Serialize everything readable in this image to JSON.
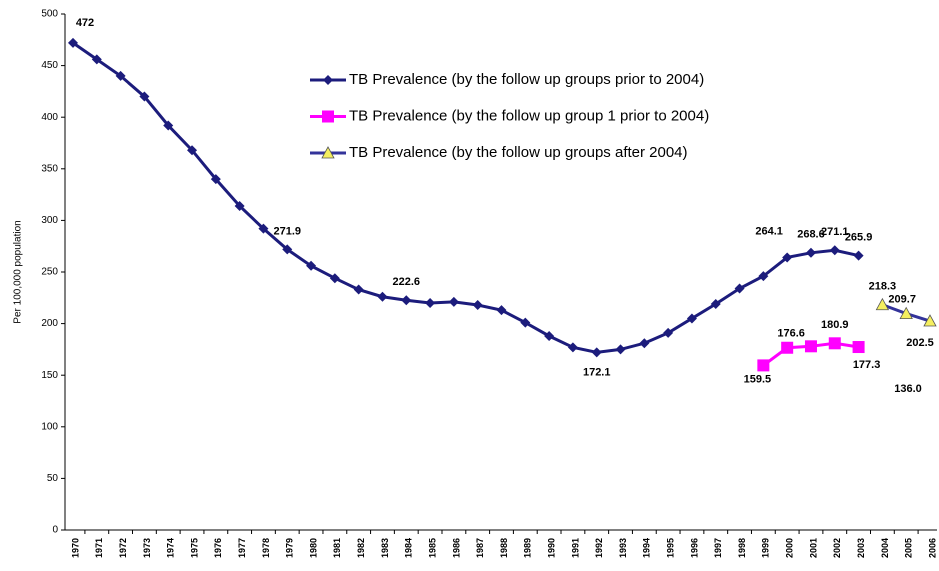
{
  "chart_data": {
    "type": "line",
    "y_label": "Per 100,000 population",
    "categories": [
      "1970",
      "1971",
      "1972",
      "1973",
      "1974",
      "1975",
      "1976",
      "1977",
      "1978",
      "1979",
      "1980",
      "1981",
      "1982",
      "1983",
      "1984",
      "1985",
      "1986",
      "1987",
      "1988",
      "1989",
      "1990",
      "1991",
      "1992",
      "1993",
      "1994",
      "1995",
      "1996",
      "1997",
      "1998",
      "1999",
      "2000",
      "2001",
      "2002",
      "2003",
      "2004",
      "2005",
      "2006"
    ],
    "series": [
      {
        "name": "TB Prevalence (by the follow up groups prior to 2004)",
        "color": "#1c1c7c",
        "marker": "diamond",
        "values": [
          472,
          456,
          440,
          420,
          392,
          368,
          340,
          314,
          292,
          271.9,
          256,
          244,
          233,
          226,
          222.6,
          220,
          221,
          218,
          213,
          201,
          188,
          177,
          172.1,
          175,
          181,
          191,
          205,
          219,
          234,
          246,
          264.1,
          268.6,
          271.1,
          265.9,
          null,
          null,
          null
        ],
        "value_labels": [
          "472",
          null,
          null,
          null,
          null,
          null,
          null,
          null,
          null,
          "271.9",
          null,
          null,
          null,
          null,
          "222.6",
          null,
          null,
          null,
          null,
          null,
          null,
          null,
          "172.1",
          null,
          null,
          null,
          null,
          null,
          null,
          null,
          "264.1",
          "268.6",
          "271.1",
          "265.9",
          null,
          null,
          null
        ]
      },
      {
        "name": "TB Prevalence (by the follow up group 1 prior to 2004)",
        "color": "#ff00ff",
        "marker": "square",
        "values": [
          null,
          null,
          null,
          null,
          null,
          null,
          null,
          null,
          null,
          null,
          null,
          null,
          null,
          null,
          null,
          null,
          null,
          null,
          null,
          null,
          null,
          null,
          null,
          null,
          null,
          null,
          null,
          null,
          null,
          159.5,
          176.6,
          178,
          180.9,
          177.3,
          null,
          null,
          null
        ],
        "value_labels": [
          null,
          null,
          null,
          null,
          null,
          null,
          null,
          null,
          null,
          null,
          null,
          null,
          null,
          null,
          null,
          null,
          null,
          null,
          null,
          null,
          null,
          null,
          null,
          null,
          null,
          null,
          null,
          null,
          null,
          "159.5",
          "176.6",
          null,
          "180.9",
          "177.3",
          null,
          null,
          null
        ]
      },
      {
        "name": "TB Prevalence (by the follow up groups after 2004)",
        "color": "#33339a",
        "marker": "triangle",
        "marker_fill": "#f5ef60",
        "values": [
          null,
          null,
          null,
          null,
          null,
          null,
          null,
          null,
          null,
          null,
          null,
          null,
          null,
          null,
          null,
          null,
          null,
          null,
          null,
          null,
          null,
          null,
          null,
          null,
          null,
          null,
          null,
          null,
          null,
          null,
          null,
          null,
          null,
          null,
          218.3,
          209.7,
          202.5
        ],
        "value_labels": [
          null,
          null,
          null,
          null,
          null,
          null,
          null,
          null,
          null,
          null,
          null,
          null,
          null,
          null,
          null,
          null,
          null,
          null,
          null,
          null,
          null,
          null,
          null,
          null,
          null,
          null,
          null,
          null,
          null,
          null,
          null,
          null,
          null,
          null,
          "218.3",
          "209.7",
          "202.5"
        ]
      }
    ],
    "annotations": [
      "136.0"
    ],
    "ylim": [
      0,
      500
    ],
    "yticks": [
      0,
      50,
      100,
      150,
      200,
      250,
      300,
      350,
      400,
      450,
      500
    ],
    "grid": false,
    "legend": "top"
  }
}
